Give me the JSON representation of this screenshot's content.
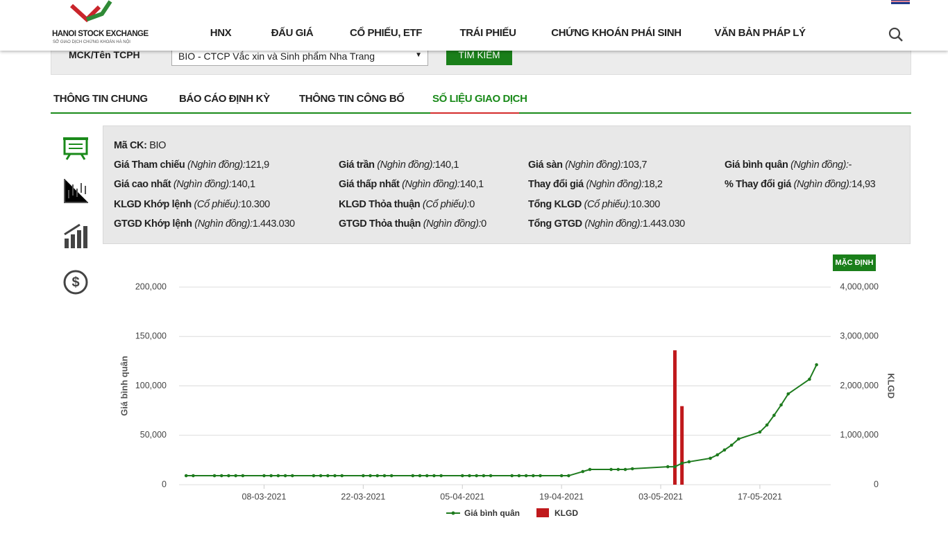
{
  "header": {
    "logo_title": "HANOI STOCK EXCHANGE",
    "logo_subtitle": "SỞ GIAO DỊCH CHỨNG KHOÁN HÀ NỘI",
    "nav": [
      "HNX",
      "ĐẤU GIÁ",
      "CỔ PHIẾU, ETF",
      "TRÁI PHIẾU",
      "CHỨNG KHOÁN PHÁI SINH",
      "VĂN BẢN PHÁP LÝ"
    ]
  },
  "search": {
    "label": "MCK/Tên TCPH",
    "selected": "BIO - CTCP Vắc xin và Sinh phẩm Nha Trang",
    "button": "TÌM KIẾM"
  },
  "tabs": {
    "items": [
      "THÔNG TIN CHUNG",
      "BÁO CÁO ĐỊNH KỲ",
      "THÔNG TIN CÔNG BỐ",
      "SỐ LIỆU GIAO DỊCH"
    ],
    "active": 3
  },
  "info": {
    "code": {
      "label": "Mã CK:",
      "value": "BIO"
    },
    "rows": [
      [
        {
          "label": "Giá Tham chiếu",
          "unit": "(Nghìn đồng):",
          "value": "121,9"
        },
        {
          "label": "Giá trần",
          "unit": "(Nghìn đồng):",
          "value": "140,1"
        },
        {
          "label": "Giá sàn",
          "unit": "(Nghìn đồng):",
          "value": "103,7"
        },
        {
          "label": "Giá bình quân",
          "unit": "(Nghìn đồng):",
          "value": "-"
        }
      ],
      [
        {
          "label": "Giá cao nhất",
          "unit": "(Nghìn đồng):",
          "value": "140,1"
        },
        {
          "label": "Giá thấp nhất",
          "unit": "(Nghìn đồng):",
          "value": "140,1"
        },
        {
          "label": "Thay đổi giá",
          "unit": "(Nghìn đồng):",
          "value": "18,2"
        },
        {
          "label": "% Thay đổi giá",
          "unit": "(Nghìn đồng):",
          "value": "14,93"
        }
      ],
      [
        {
          "label": "KLGD Khớp lệnh",
          "unit": "(Cổ phiếu):",
          "value": "10.300"
        },
        {
          "label": "KLGD Thỏa thuận",
          "unit": "(Cổ phiếu):",
          "value": "0"
        },
        {
          "label": "Tổng KLGD",
          "unit": "(Cổ phiếu):",
          "value": "10.300"
        }
      ],
      [
        {
          "label": "GTGD Khớp lệnh",
          "unit": "(Nghìn đồng):",
          "value": "1.443.030"
        },
        {
          "label": "GTGD Thỏa thuận",
          "unit": "(Nghìn đồng):",
          "value": "0"
        },
        {
          "label": "Tổng GTGD",
          "unit": "(Nghìn đồng):",
          "value": "1.443.030"
        }
      ]
    ]
  },
  "chart_button": "MẶC ĐỊNH",
  "chart_data": {
    "type": "combo",
    "ylabel": "Giá bình quân",
    "y2label": "KLGD",
    "x": [
      "25-02-2021",
      "26-02-2021",
      "01-03-2021",
      "02-03-2021",
      "03-03-2021",
      "04-03-2021",
      "05-03-2021",
      "08-03-2021",
      "09-03-2021",
      "10-03-2021",
      "11-03-2021",
      "12-03-2021",
      "15-03-2021",
      "16-03-2021",
      "17-03-2021",
      "18-03-2021",
      "19-03-2021",
      "22-03-2021",
      "23-03-2021",
      "24-03-2021",
      "25-03-2021",
      "26-03-2021",
      "29-03-2021",
      "30-03-2021",
      "31-03-2021",
      "01-04-2021",
      "02-04-2021",
      "05-04-2021",
      "06-04-2021",
      "07-04-2021",
      "08-04-2021",
      "09-04-2021",
      "12-04-2021",
      "13-04-2021",
      "14-04-2021",
      "15-04-2021",
      "16-04-2021",
      "19-04-2021",
      "20-04-2021",
      "22-04-2021",
      "23-04-2021",
      "26-04-2021",
      "27-04-2021",
      "28-04-2021",
      "29-04-2021",
      "04-05-2021",
      "05-05-2021",
      "06-05-2021",
      "07-05-2021",
      "10-05-2021",
      "11-05-2021",
      "12-05-2021",
      "13-05-2021",
      "14-05-2021",
      "17-05-2021",
      "18-05-2021",
      "19-05-2021",
      "20-05-2021",
      "21-05-2021",
      "24-05-2021",
      "25-05-2021"
    ],
    "series": [
      {
        "name": "Giá bình quân",
        "type": "line",
        "axis": "y",
        "color": "#1e7b1e",
        "values": [
          9100,
          9100,
          9100,
          9100,
          9100,
          9100,
          9100,
          9100,
          9100,
          9100,
          9100,
          9100,
          9100,
          9100,
          9100,
          9100,
          9100,
          9100,
          9100,
          9100,
          9100,
          9100,
          9100,
          9100,
          9100,
          9100,
          9100,
          9100,
          9100,
          9100,
          9100,
          9100,
          9100,
          9100,
          9100,
          9100,
          9100,
          9100,
          9100,
          13300,
          15400,
          15400,
          15400,
          15400,
          16100,
          18200,
          18200,
          21700,
          23200,
          26700,
          30200,
          35100,
          40000,
          46300,
          53300,
          60400,
          70200,
          80700,
          91900,
          106700,
          121400
        ]
      },
      {
        "name": "KLGD",
        "type": "bar",
        "axis": "y2",
        "color": "#c0191c",
        "values": [
          null,
          null,
          null,
          null,
          null,
          null,
          null,
          null,
          null,
          null,
          null,
          null,
          null,
          null,
          null,
          null,
          null,
          null,
          null,
          null,
          null,
          null,
          null,
          null,
          null,
          null,
          null,
          null,
          null,
          null,
          null,
          null,
          null,
          null,
          null,
          null,
          null,
          null,
          null,
          null,
          null,
          null,
          null,
          null,
          null,
          null,
          2720000,
          1590000,
          null,
          null,
          null,
          null,
          null,
          null,
          null,
          null,
          null,
          null,
          null,
          null,
          null
        ]
      }
    ],
    "xlim": [
      "24-02-2021",
      "27-05-2021"
    ],
    "xticks": [
      "08-03-2021",
      "22-03-2021",
      "05-04-2021",
      "19-04-2021",
      "03-05-2021",
      "17-05-2021"
    ],
    "ylim": [
      0,
      200000
    ],
    "yticks": [
      0,
      {
        "value": 50000,
        "label": "50,000"
      },
      {
        "value": 100000,
        "label": "100,000"
      },
      {
        "value": 150000,
        "label": "150,000"
      },
      {
        "value": 200000,
        "label": "200,000"
      }
    ],
    "y2lim": [
      0,
      4000000
    ],
    "y2ticks": [
      0,
      {
        "value": 1000000,
        "label": "1,000,000"
      },
      {
        "value": 2000000,
        "label": "2,000,000"
      },
      {
        "value": 3000000,
        "label": "3,000,000"
      },
      {
        "value": 4000000,
        "label": "4,000,000"
      }
    ],
    "grid": true
  }
}
